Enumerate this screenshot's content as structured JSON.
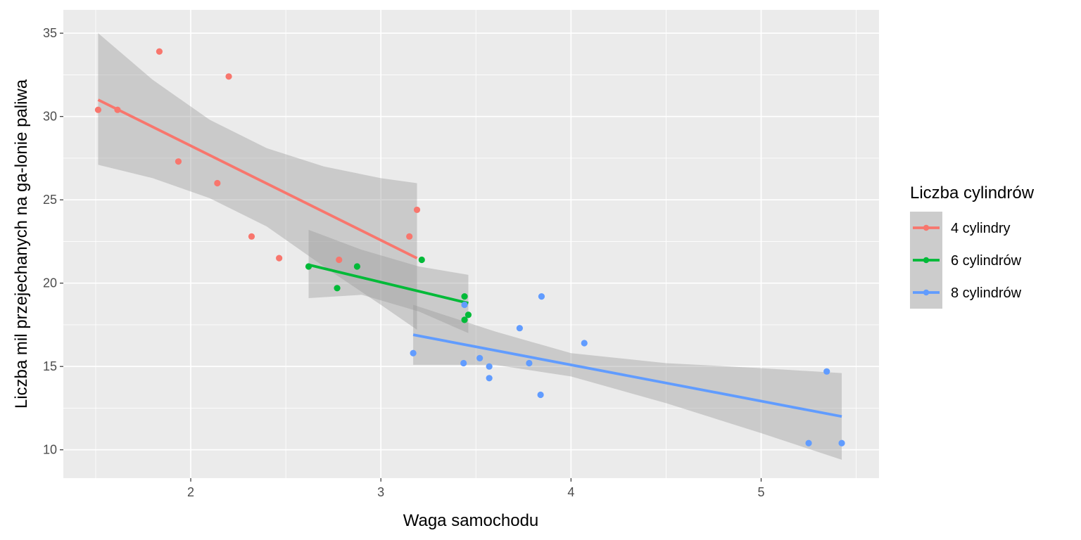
{
  "chart_data": {
    "type": "scatter",
    "title": "",
    "xlabel": "Waga samochodu",
    "ylabel": "Liczba mil przejechanych na ga-lonie paliwa",
    "xlim": [
      1.33,
      5.62
    ],
    "ylim": [
      8.3,
      36.4
    ],
    "x_ticks": [
      2,
      3,
      4,
      5
    ],
    "x_tick_labels": [
      "2",
      "3",
      "4",
      "5"
    ],
    "y_ticks": [
      10,
      15,
      20,
      25,
      30,
      35
    ],
    "y_tick_labels": [
      "10",
      "15",
      "20",
      "25",
      "30",
      "35"
    ],
    "grid": true,
    "legend": {
      "title": "Liczba cylindrów",
      "position": "right",
      "items": [
        "4 cylindry",
        "6 cylindrów",
        "8 cylindrów"
      ]
    },
    "series": [
      {
        "name": "4 cylindry",
        "color": "#F8766D",
        "points": [
          [
            2.32,
            22.8
          ],
          [
            3.19,
            24.4
          ],
          [
            3.15,
            22.8
          ],
          [
            2.2,
            32.4
          ],
          [
            1.615,
            30.4
          ],
          [
            1.835,
            33.9
          ],
          [
            2.465,
            21.5
          ],
          [
            1.935,
            27.3
          ],
          [
            2.14,
            26.0
          ],
          [
            1.513,
            30.4
          ],
          [
            2.78,
            21.4
          ]
        ],
        "fit": {
          "x": [
            1.513,
            3.19
          ],
          "y": [
            31.0,
            21.5
          ]
        },
        "band": {
          "x": [
            1.513,
            1.8,
            2.1,
            2.4,
            2.7,
            3.0,
            3.19
          ],
          "lower": [
            27.1,
            26.3,
            25.1,
            23.4,
            21.0,
            18.7,
            17.2
          ],
          "upper": [
            35.0,
            32.2,
            29.8,
            28.1,
            27.0,
            26.3,
            26.0
          ]
        }
      },
      {
        "name": "6 cylindrów",
        "color": "#00BA38",
        "points": [
          [
            2.62,
            21.0
          ],
          [
            2.875,
            21.0
          ],
          [
            3.215,
            21.4
          ],
          [
            3.46,
            18.1
          ],
          [
            3.44,
            19.2
          ],
          [
            3.44,
            17.8
          ],
          [
            2.77,
            19.7
          ]
        ],
        "fit": {
          "x": [
            2.62,
            3.46
          ],
          "y": [
            21.1,
            18.8
          ]
        },
        "band": {
          "x": [
            2.62,
            2.9,
            3.2,
            3.46
          ],
          "lower": [
            19.1,
            19.3,
            18.3,
            17.0
          ],
          "upper": [
            23.2,
            22.0,
            21.0,
            20.5
          ]
        }
      },
      {
        "name": "8 cylindrów",
        "color": "#619CFF",
        "points": [
          [
            3.44,
            18.7
          ],
          [
            3.57,
            14.3
          ],
          [
            4.07,
            16.4
          ],
          [
            3.73,
            17.3
          ],
          [
            3.78,
            15.2
          ],
          [
            5.25,
            10.4
          ],
          [
            5.424,
            10.4
          ],
          [
            5.345,
            14.7
          ],
          [
            3.52,
            15.5
          ],
          [
            3.435,
            15.2
          ],
          [
            3.84,
            13.3
          ],
          [
            3.845,
            19.2
          ],
          [
            3.17,
            15.8
          ],
          [
            3.57,
            15.0
          ]
        ],
        "fit": {
          "x": [
            3.17,
            5.424
          ],
          "y": [
            16.9,
            12.0
          ]
        },
        "band": {
          "x": [
            3.17,
            3.6,
            4.0,
            4.5,
            5.0,
            5.424
          ],
          "lower": [
            15.1,
            15.1,
            14.4,
            12.8,
            11.0,
            9.4
          ],
          "upper": [
            18.7,
            17.1,
            15.8,
            15.2,
            14.9,
            14.6
          ]
        }
      }
    ]
  }
}
